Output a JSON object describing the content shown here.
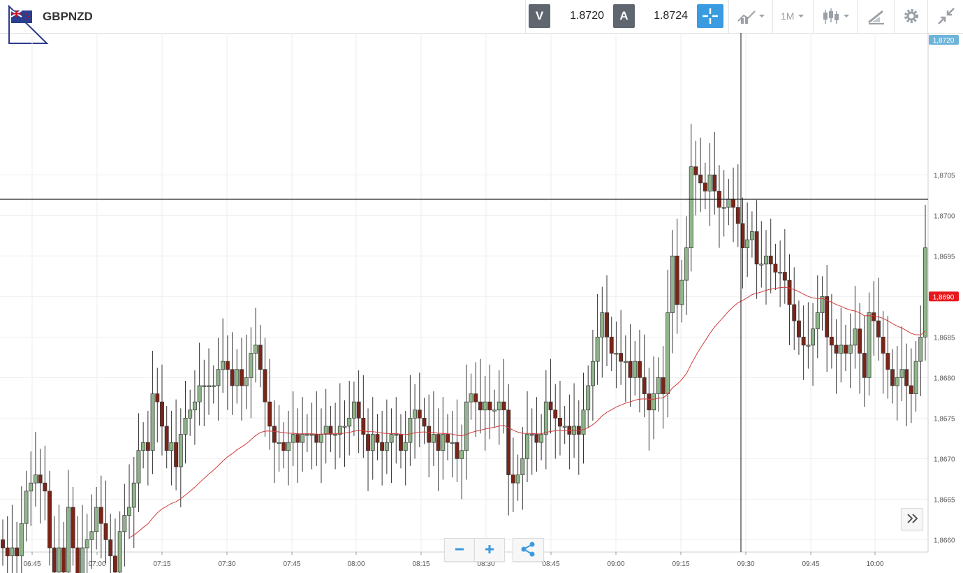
{
  "header": {
    "symbol": "GBPNZD",
    "bid_label": "V",
    "bid_value": "1.8720",
    "ask_label": "A",
    "ask_value": "1.8724",
    "timeframe": "1M"
  },
  "icons": [
    "flag-icon",
    "crosshair-icon",
    "indicators-icon",
    "candles-icon",
    "draw-icon",
    "gear-icon",
    "collapse-icon",
    "zoom-out-icon",
    "zoom-in-icon",
    "share-icon",
    "scroll-right-icon"
  ],
  "colors": {
    "bull": "#8fb58a",
    "bear": "#7a2417",
    "ma": "#d23a3a",
    "current_price_tag": "#e8191d",
    "top_price_tag": "#6fb4d8",
    "accent": "#3a9be0"
  },
  "chart_data": {
    "type": "candlestick",
    "y_ticks": [
      "1,8660",
      "1,8665",
      "1,8670",
      "1,8675",
      "1,8680",
      "1,8685",
      "1,8690",
      "1,8695",
      "1,8700",
      "1,8705",
      "1,8720"
    ],
    "y_range": [
      1.8659,
      1.8722
    ],
    "x_ticks": [
      "06:45",
      "07:00",
      "07:15",
      "07:30",
      "07:45",
      "08:00",
      "08:15",
      "08:30",
      "08:45",
      "09:00",
      "09:15",
      "09:30",
      "09:45",
      "10:00"
    ],
    "x_range": [
      "06:39",
      "10:13"
    ],
    "crosshair": {
      "price": 1.8702,
      "time": "09:30"
    },
    "current_price": 1.869,
    "current_price_label": "1,8690",
    "top_price_label": "1,8720",
    "closes": [
      1.8659,
      1.8658,
      1.8659,
      1.8658,
      1.8662,
      1.8666,
      1.8667,
      1.8668,
      1.8667,
      1.8666,
      1.8659,
      1.8656,
      1.8659,
      1.8656,
      1.8664,
      1.8659,
      1.8653,
      1.8659,
      1.866,
      1.8661,
      1.8664,
      1.8662,
      1.866,
      1.8658,
      1.8656,
      1.8661,
      1.8663,
      1.8664,
      1.8667,
      1.8671,
      1.8672,
      1.8671,
      1.8678,
      1.8677,
      1.8674,
      1.8671,
      1.8672,
      1.8669,
      1.8673,
      1.8675,
      1.8676,
      1.8677,
      1.8679,
      1.8679,
      1.8679,
      1.8679,
      1.8681,
      1.8682,
      1.8681,
      1.8679,
      1.8681,
      1.8679,
      1.868,
      1.8683,
      1.8684,
      1.8681,
      1.8677,
      1.8674,
      1.8672,
      1.8672,
      1.8671,
      1.8672,
      1.8673,
      1.8672,
      1.8673,
      1.8673,
      1.8673,
      1.8672,
      1.8673,
      1.8674,
      1.8673,
      1.8673,
      1.8674,
      1.8674,
      1.8675,
      1.8677,
      1.8675,
      1.8673,
      1.8671,
      1.8673,
      1.8672,
      1.8671,
      1.8672,
      1.8673,
      1.8673,
      1.8671,
      1.8672,
      1.8675,
      1.8676,
      1.8675,
      1.8674,
      1.8672,
      1.8673,
      1.8671,
      1.8673,
      1.8672,
      1.8672,
      1.867,
      1.8671,
      1.8677,
      1.8678,
      1.8677,
      1.8676,
      1.8677,
      1.8676,
      1.8676,
      1.8677,
      1.8676,
      1.8668,
      1.8667,
      1.8668,
      1.867,
      1.8673,
      1.8673,
      1.8672,
      1.8673,
      1.8677,
      1.8676,
      1.8675,
      1.8674,
      1.8674,
      1.8673,
      1.8674,
      1.8673,
      1.8676,
      1.8679,
      1.8682,
      1.8685,
      1.8688,
      1.8685,
      1.8683,
      1.8683,
      1.8682,
      1.8682,
      1.868,
      1.8682,
      1.868,
      1.8678,
      1.8676,
      1.8678,
      1.868,
      1.8678,
      1.8688,
      1.8695,
      1.8689,
      1.8692,
      1.8696,
      1.8706,
      1.8705,
      1.8704,
      1.8703,
      1.8705,
      1.8703,
      1.8701,
      1.8701,
      1.8702,
      1.8701,
      1.8699,
      1.8696,
      1.8697,
      1.8698,
      1.8694,
      1.8694,
      1.8695,
      1.8694,
      1.8693,
      1.8693,
      1.8692,
      1.8689,
      1.8687,
      1.8685,
      1.8684,
      1.8684,
      1.8686,
      1.8688,
      1.869,
      1.8685,
      1.8684,
      1.8683,
      1.8684,
      1.8683,
      1.8684,
      1.8686,
      1.8683,
      1.868,
      1.8688,
      1.8687,
      1.8685,
      1.8683,
      1.8681,
      1.8679,
      1.868,
      1.8681,
      1.8679,
      1.8678,
      1.8682,
      1.8685,
      1.8696
    ],
    "ma_label": "MA"
  }
}
